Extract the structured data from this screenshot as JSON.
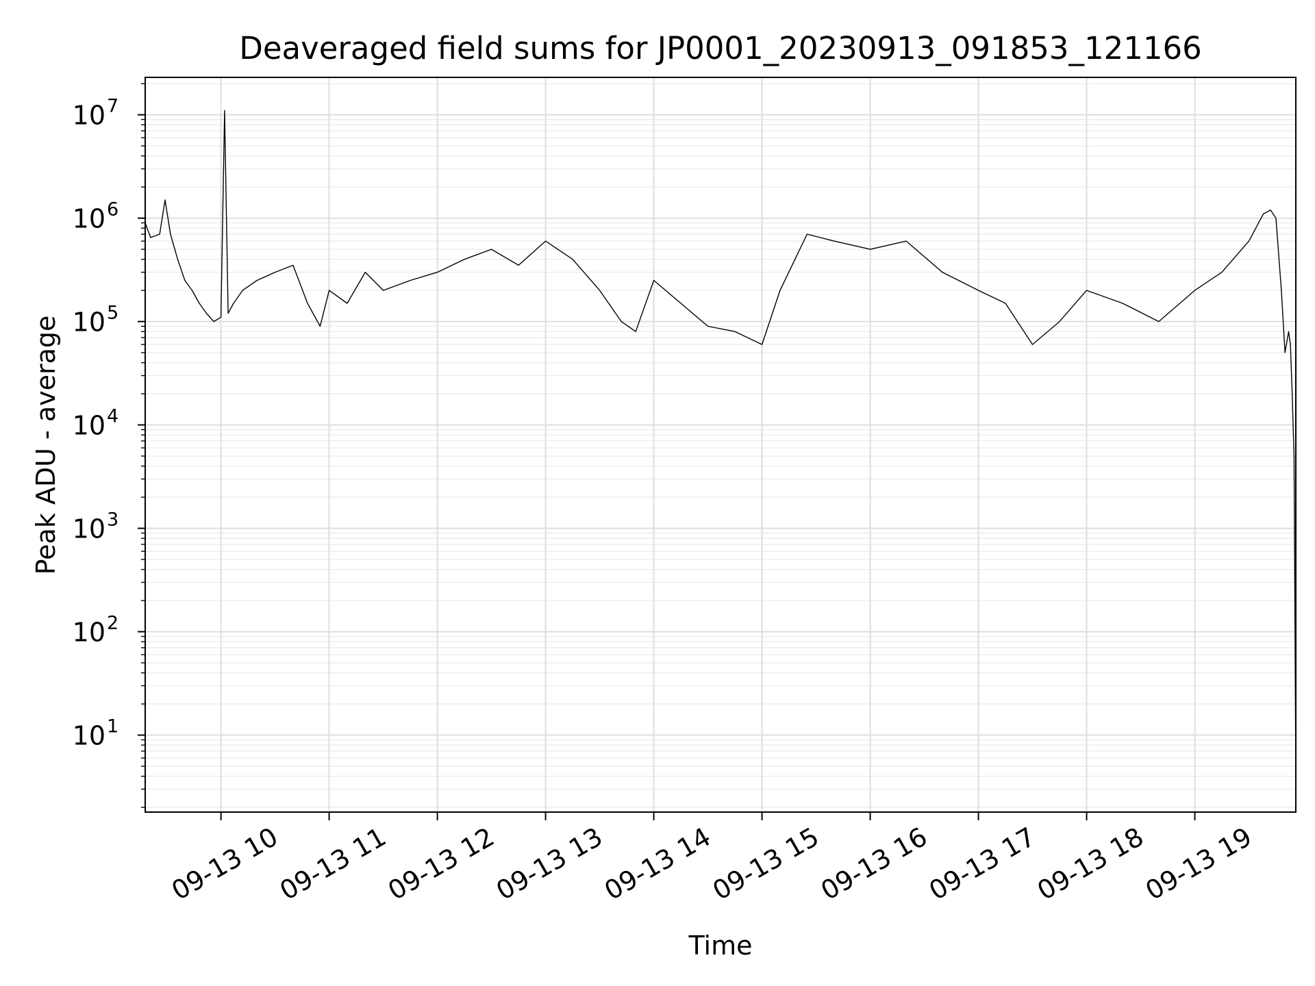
{
  "chart_data": {
    "type": "line",
    "title": "Deaveraged field sums for JP0001_20230913_091853_121166",
    "xlabel": "Time",
    "ylabel": "Peak ADU - average",
    "yscale": "log",
    "ylim": [
      1.8,
      23000000.0
    ],
    "xlim": [
      "2023-09-13 09:18",
      "2023-09-13 19:56"
    ],
    "grid": true,
    "x_tick_labels": [
      "09-13 10",
      "09-13 11",
      "09-13 12",
      "09-13 13",
      "09-13 14",
      "09-13 15",
      "09-13 16",
      "09-13 17",
      "09-13 18",
      "09-13 19"
    ],
    "y_ticks": [
      {
        "base": "10",
        "exp": "1"
      },
      {
        "base": "10",
        "exp": "2"
      },
      {
        "base": "10",
        "exp": "3"
      },
      {
        "base": "10",
        "exp": "4"
      },
      {
        "base": "10",
        "exp": "5"
      },
      {
        "base": "10",
        "exp": "6"
      },
      {
        "base": "10",
        "exp": "7"
      }
    ],
    "series": [
      {
        "color": "#000000",
        "x": [
          "2023-09-13 09:18",
          "2023-09-13 09:21",
          "2023-09-13 09:26",
          "2023-09-13 09:29",
          "2023-09-13 09:32",
          "2023-09-13 09:36",
          "2023-09-13 09:40",
          "2023-09-13 09:44",
          "2023-09-13 09:48",
          "2023-09-13 09:52",
          "2023-09-13 09:56",
          "2023-09-13 10:00",
          "2023-09-13 10:02",
          "2023-09-13 10:04",
          "2023-09-13 10:07",
          "2023-09-13 10:12",
          "2023-09-13 10:20",
          "2023-09-13 10:30",
          "2023-09-13 10:40",
          "2023-09-13 10:48",
          "2023-09-13 10:55",
          "2023-09-13 11:00",
          "2023-09-13 11:10",
          "2023-09-13 11:20",
          "2023-09-13 11:30",
          "2023-09-13 11:45",
          "2023-09-13 12:00",
          "2023-09-13 12:15",
          "2023-09-13 12:30",
          "2023-09-13 12:45",
          "2023-09-13 13:00",
          "2023-09-13 13:15",
          "2023-09-13 13:30",
          "2023-09-13 13:42",
          "2023-09-13 13:50",
          "2023-09-13 14:00",
          "2023-09-13 14:15",
          "2023-09-13 14:30",
          "2023-09-13 14:45",
          "2023-09-13 15:00",
          "2023-09-13 15:10",
          "2023-09-13 15:25",
          "2023-09-13 15:40",
          "2023-09-13 16:00",
          "2023-09-13 16:20",
          "2023-09-13 16:40",
          "2023-09-13 17:00",
          "2023-09-13 17:15",
          "2023-09-13 17:30",
          "2023-09-13 17:45",
          "2023-09-13 18:00",
          "2023-09-13 18:20",
          "2023-09-13 18:40",
          "2023-09-13 19:00",
          "2023-09-13 19:15",
          "2023-09-13 19:30",
          "2023-09-13 19:38",
          "2023-09-13 19:42",
          "2023-09-13 19:45",
          "2023-09-13 19:48",
          "2023-09-13 19:50",
          "2023-09-13 19:52",
          "2023-09-13 19:53",
          "2023-09-13 19:54",
          "2023-09-13 19:55",
          "2023-09-13 19:56"
        ],
        "y": [
          900000,
          650000,
          700000,
          1500000,
          700000,
          400000,
          250000,
          200000,
          150000,
          120000,
          100000,
          110000,
          11000000,
          120000,
          150000,
          200000,
          250000,
          300000,
          350000,
          150000,
          90000,
          200000,
          150000,
          300000,
          200000,
          250000,
          300000,
          400000,
          500000,
          350000,
          600000,
          400000,
          200000,
          100000,
          80000,
          250000,
          150000,
          90000,
          80000,
          60000,
          200000,
          700000,
          600000,
          500000,
          600000,
          300000,
          200000,
          150000,
          60000,
          100000,
          200000,
          150000,
          100000,
          200000,
          300000,
          600000,
          1100000,
          1200000,
          1000000,
          200000,
          50000,
          80000,
          60000,
          20000,
          5000,
          4
        ]
      }
    ]
  }
}
